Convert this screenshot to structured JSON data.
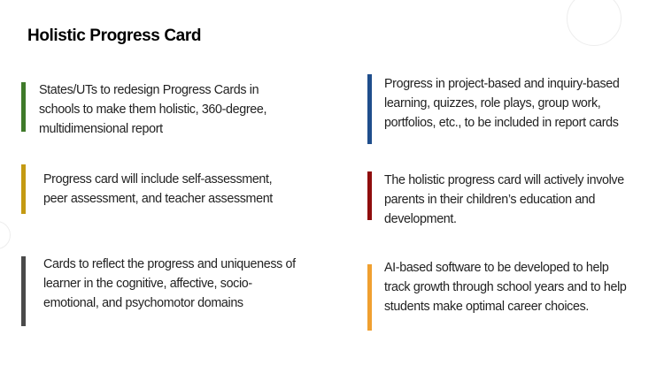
{
  "title": "Holistic Progress Card",
  "colors": {
    "green": "#3f7a2a",
    "gold": "#c49a12",
    "gray": "#4a4a4a",
    "blue": "#1f4e8c",
    "red": "#8f0d0d",
    "orange": "#f0a030"
  },
  "left_points": [
    {
      "text": "States/UTs to redesign Progress Cards in schools to make them holistic, 360-degree, multidimensional report",
      "color": "#3f7a2a"
    },
    {
      "text": "Progress card will include self-assessment, peer assessment, and teacher assessment",
      "color": "#c49a12"
    },
    {
      "text": "Cards to reflect the progress and uniqueness of learner in the cognitive, affective, socio-emotional, and psychomotor domains",
      "color": "#4a4a4a"
    }
  ],
  "right_points": [
    {
      "text": "Progress in project-based and inquiry-based learning, quizzes, role plays, group work, portfolios, etc., to be included in report cards",
      "color": "#1f4e8c"
    },
    {
      "text": "The holistic progress card will actively involve parents in their children’s education and development.",
      "color": "#8f0d0d"
    },
    {
      "text": "AI-based software to be developed to help track growth through school years and to help students make optimal career choices.",
      "color": "#f0a030"
    }
  ]
}
